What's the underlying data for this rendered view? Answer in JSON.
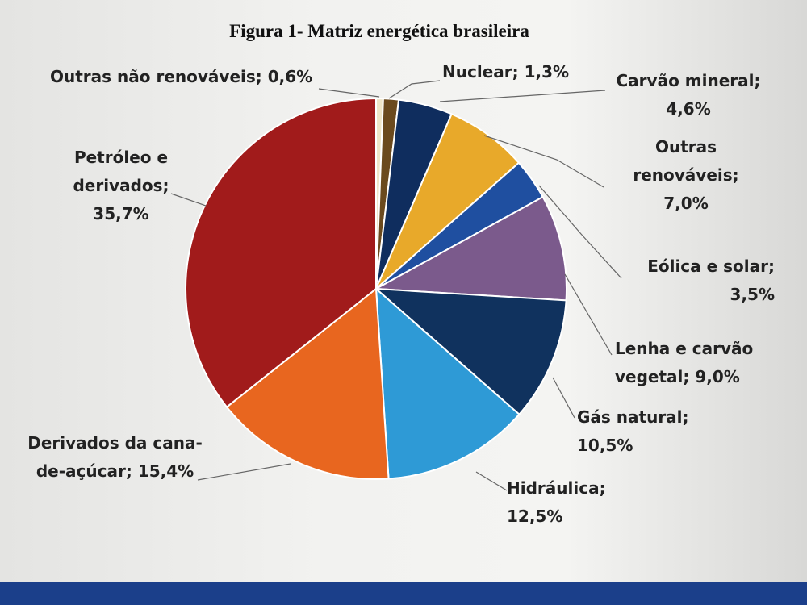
{
  "chart_data": {
    "type": "pie",
    "title": "Figura 1- Matriz energética brasileira",
    "categories": [
      "Outras não renováveis;",
      "Nuclear;",
      "Carvão mineral;",
      "Outras renováveis;",
      "Eólica e solar;",
      "Lenha e carvão vegetal;",
      "Gás natural;",
      "Hidráulica;",
      "Derivados da cana-de-açúcar;",
      "Petróleo e derivados;"
    ],
    "values": [
      0.6,
      1.3,
      4.6,
      7.0,
      3.5,
      9.0,
      10.5,
      12.5,
      15.4,
      35.7
    ],
    "value_labels": [
      "0,6%",
      "1,3%",
      "4,6%",
      "7,0%",
      "3,5%",
      "9,0%",
      "10,5%",
      "12,5%",
      "15,4%",
      "35,7%"
    ],
    "colors": [
      "#efe6c8",
      "#6b4a1e",
      "#0f2d5e",
      "#e8a92a",
      "#1f4fa0",
      "#7b5a8c",
      "#10325e",
      "#2e9ad6",
      "#e8661f",
      "#a11b1b"
    ]
  }
}
